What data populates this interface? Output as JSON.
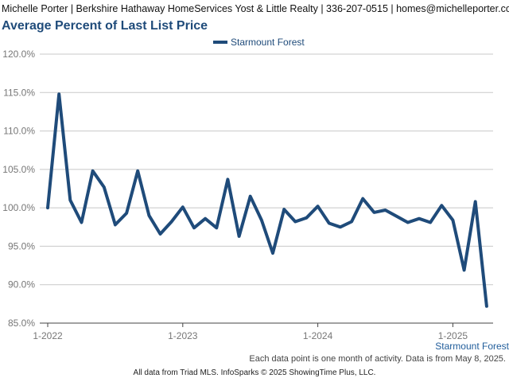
{
  "header": {
    "contact": "Michelle Porter | Berkshire Hathaway HomeServices Yost & Little Realty | 336-207-0515 | homes@michelleporter.com"
  },
  "legend": {
    "label": "Starmount Forest",
    "color": "#1f4b7a"
  },
  "footer": {
    "series_label": "Starmount Forest",
    "note": "Each data point is one month of activity. Data is from May 8, 2025.",
    "credit": "All data from Triad MLS. InfoSparks © 2025 ShowingTime Plus, LLC."
  },
  "chart_data": {
    "type": "line",
    "title": "Average Percent of Last List Price",
    "x_tick_labels": [
      "1-2022",
      "1-2023",
      "1-2024",
      "1-2025"
    ],
    "y_tick_labels": [
      "85.0%",
      "90.0%",
      "95.0%",
      "100.0%",
      "105.0%",
      "110.0%",
      "115.0%",
      "120.0%"
    ],
    "ylim": [
      85,
      120
    ],
    "y_ticks": [
      85,
      90,
      95,
      100,
      105,
      110,
      115,
      120
    ],
    "grid": true,
    "legend_position": "top-center",
    "x": [
      "2022-01",
      "2022-02",
      "2022-03",
      "2022-04",
      "2022-05",
      "2022-06",
      "2022-07",
      "2022-08",
      "2022-09",
      "2022-10",
      "2022-11",
      "2022-12",
      "2023-01",
      "2023-02",
      "2023-03",
      "2023-04",
      "2023-05",
      "2023-06",
      "2023-07",
      "2023-08",
      "2023-09",
      "2023-10",
      "2023-11",
      "2023-12",
      "2024-01",
      "2024-02",
      "2024-03",
      "2024-04",
      "2024-05",
      "2024-06",
      "2024-07",
      "2024-08",
      "2024-09",
      "2024-10",
      "2024-11",
      "2024-12",
      "2025-01",
      "2025-02",
      "2025-03",
      "2025-04"
    ],
    "series": [
      {
        "name": "Starmount Forest",
        "color": "#1f4b7a",
        "values": [
          100.0,
          114.8,
          101.0,
          98.1,
          104.8,
          102.7,
          97.8,
          99.3,
          104.8,
          99.0,
          96.6,
          98.2,
          100.1,
          97.4,
          98.6,
          97.4,
          103.7,
          96.3,
          101.5,
          98.4,
          94.1,
          99.8,
          98.2,
          98.7,
          100.2,
          98.0,
          97.5,
          98.2,
          101.2,
          99.4,
          99.7,
          98.9,
          98.1,
          98.6,
          98.1,
          100.3,
          98.4,
          91.9,
          100.8,
          87.2
        ]
      }
    ]
  }
}
